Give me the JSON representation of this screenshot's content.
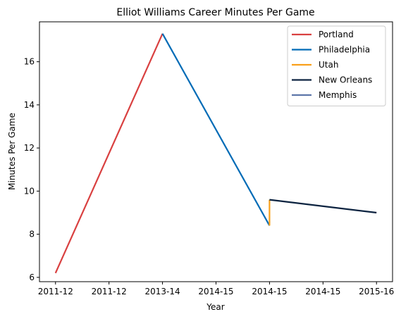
{
  "chart_data": {
    "type": "line",
    "title": "Elliot Williams Career Minutes Per Game",
    "xlabel": "Year",
    "ylabel": "Minutes Per Game",
    "x_tick_labels": [
      "2011-12",
      "2011-12",
      "2013-14",
      "2014-15",
      "2014-15",
      "2014-15",
      "2015-16"
    ],
    "xlim": [
      -0.3,
      6.3
    ],
    "ylim": [
      5.8,
      17.85
    ],
    "y_ticks": [
      6,
      8,
      10,
      12,
      14,
      16
    ],
    "grid": false,
    "legend_placement": "top-right",
    "series": [
      {
        "name": "Portland",
        "color": "#d94040",
        "points": [
          [
            0,
            6.2
          ],
          [
            2,
            17.3
          ]
        ]
      },
      {
        "name": "Philadelphia",
        "color": "#006bb6",
        "points": [
          [
            2,
            17.3
          ],
          [
            4,
            8.4
          ]
        ]
      },
      {
        "name": "Utah",
        "color": "#f9a01b",
        "points": [
          [
            4,
            8.4
          ],
          [
            4,
            9.6
          ]
        ]
      },
      {
        "name": "New Orleans",
        "color": "#0c2340",
        "points": [
          [
            4,
            9.6
          ],
          [
            6,
            9.0
          ]
        ]
      },
      {
        "name": "Memphis",
        "color": "#5d76a9",
        "points": []
      }
    ]
  }
}
